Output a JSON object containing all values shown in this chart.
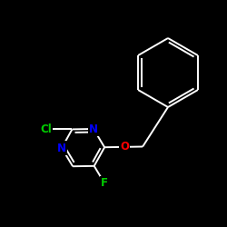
{
  "background_color": "#000000",
  "bond_color": "#ffffff",
  "atom_colors": {
    "Cl": "#00cc00",
    "N": "#0000ff",
    "O": "#ff0000",
    "F": "#00cc00",
    "C": "#ffffff"
  },
  "figsize": [
    2.5,
    2.5
  ],
  "dpi": 100,
  "lw": 1.4,
  "fs": 8.5
}
